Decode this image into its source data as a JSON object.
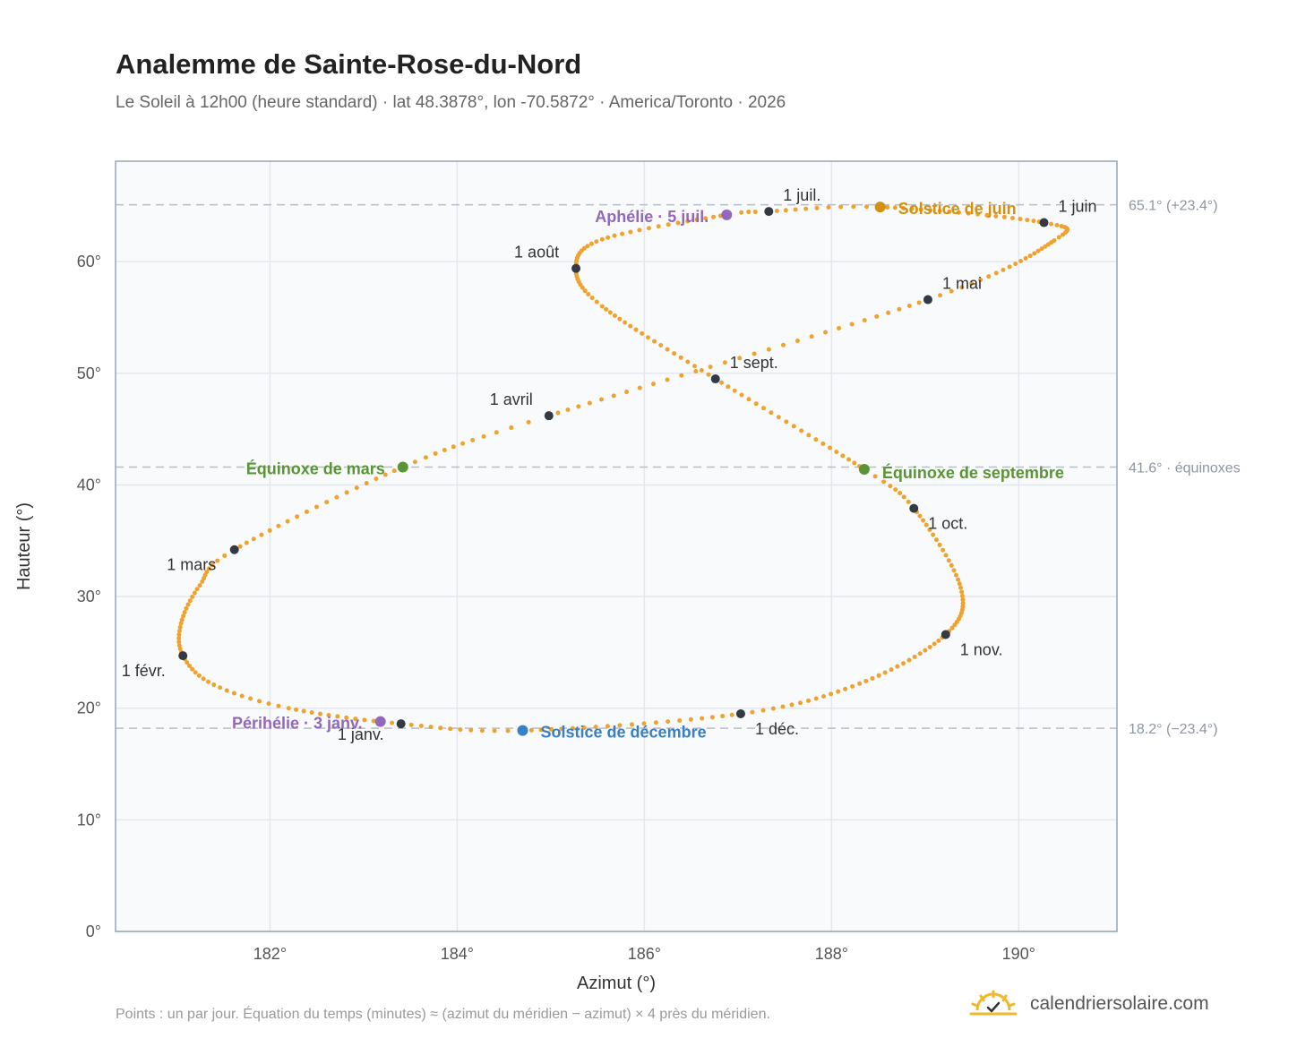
{
  "header": {
    "title": "Analemme de Sainte-Rose-du-Nord",
    "subtitle": "Le Soleil à 12h00 (heure standard) · lat 48.3878°, lon -70.5872° · America/Toronto · 2026"
  },
  "footer": {
    "note": "Points : un par jour. Équation du temps (minutes) ≈ (azimut du méridien − azimut) × 4 près du méridien.",
    "brand": "calendriersolaire.com",
    "brand_icon": "sun-logo-icon"
  },
  "colors": {
    "curve": "#f0a22e",
    "month": "#333a44",
    "june": "#d4900e",
    "equinox": "#5a9436",
    "december": "#3a7fc4",
    "apsis": "#9268b8",
    "refline": "#b8bec6",
    "plot_bg": "#f8fafc"
  },
  "chart_data": {
    "type": "scatter",
    "title": "Analemme de Sainte-Rose-du-Nord",
    "xlabel": "Azimut (°)",
    "ylabel": "Hauteur (°)",
    "xlim": [
      180.35,
      191.05
    ],
    "ylim": [
      0,
      69
    ],
    "xticks": [
      182,
      184,
      186,
      188,
      190
    ],
    "xtick_labels": [
      "182°",
      "184°",
      "186°",
      "188°",
      "190°"
    ],
    "yticks": [
      0,
      10,
      20,
      30,
      40,
      50,
      60
    ],
    "ytick_labels": [
      "0°",
      "10°",
      "20°",
      "30°",
      "40°",
      "50°",
      "60°"
    ],
    "grid": true,
    "reference_lines": [
      {
        "y": 65.1,
        "label": "65.1° (+23.4°)"
      },
      {
        "y": 41.6,
        "label": "41.6° · équinoxes"
      },
      {
        "y": 18.2,
        "label": "18.2° (−23.4°)"
      }
    ],
    "curve_anchors": [
      {
        "day": 0,
        "az": 183.4,
        "alt": 18.6
      },
      {
        "day": 13,
        "az": 182.2,
        "alt": 20.0
      },
      {
        "day": 22,
        "az": 181.4,
        "alt": 22.1
      },
      {
        "day": 31,
        "az": 181.07,
        "alt": 24.7
      },
      {
        "day": 40,
        "az": 181.05,
        "alt": 27.6
      },
      {
        "day": 50,
        "az": 181.25,
        "alt": 31.0
      },
      {
        "day": 59,
        "az": 181.62,
        "alt": 34.2
      },
      {
        "day": 78,
        "az": 183.42,
        "alt": 41.6
      },
      {
        "day": 90,
        "az": 184.98,
        "alt": 46.2
      },
      {
        "day": 120,
        "az": 189.03,
        "alt": 56.6
      },
      {
        "day": 140,
        "az": 190.38,
        "alt": 61.9
      },
      {
        "day": 151,
        "az": 190.27,
        "alt": 63.5
      },
      {
        "day": 171,
        "az": 188.52,
        "alt": 64.9
      },
      {
        "day": 181,
        "az": 187.33,
        "alt": 64.5
      },
      {
        "day": 185,
        "az": 186.88,
        "alt": 64.2
      },
      {
        "day": 200,
        "az": 185.55,
        "alt": 62.0
      },
      {
        "day": 212,
        "az": 185.27,
        "alt": 59.4
      },
      {
        "day": 224,
        "az": 185.55,
        "alt": 56.0
      },
      {
        "day": 243,
        "az": 186.76,
        "alt": 49.5
      },
      {
        "day": 265,
        "az": 188.35,
        "alt": 41.4
      },
      {
        "day": 273,
        "az": 188.88,
        "alt": 37.9
      },
      {
        "day": 290,
        "az": 189.38,
        "alt": 30.8
      },
      {
        "day": 304,
        "az": 189.22,
        "alt": 26.6
      },
      {
        "day": 320,
        "az": 188.3,
        "alt": 22.2
      },
      {
        "day": 334,
        "az": 187.03,
        "alt": 19.5
      },
      {
        "day": 354,
        "az": 184.7,
        "alt": 18.0
      },
      {
        "day": 365,
        "az": 183.4,
        "alt": 18.6
      }
    ],
    "months": [
      {
        "label": "1 janv.",
        "az": 183.4,
        "alt": 18.6,
        "anchor": "middle",
        "dx": -45,
        "dy": 18
      },
      {
        "label": "1 févr.",
        "az": 181.07,
        "alt": 24.7,
        "anchor": "middle",
        "dx": -44,
        "dy": 23
      },
      {
        "label": "1 mars",
        "az": 181.62,
        "alt": 34.2,
        "anchor": "middle",
        "dx": -48,
        "dy": 23
      },
      {
        "label": "1 avril",
        "az": 184.98,
        "alt": 46.2,
        "anchor": "middle",
        "dx": -42,
        "dy": -12
      },
      {
        "label": "1 mai",
        "az": 189.03,
        "alt": 56.6,
        "anchor": "start",
        "dx": 16,
        "dy": -12
      },
      {
        "label": "1 juin",
        "az": 190.27,
        "alt": 63.5,
        "anchor": "start",
        "dx": 16,
        "dy": -12
      },
      {
        "label": "1 juil.",
        "az": 187.33,
        "alt": 64.5,
        "anchor": "start",
        "dx": 16,
        "dy": -12
      },
      {
        "label": "1 août",
        "az": 185.27,
        "alt": 59.4,
        "anchor": "middle",
        "dx": -44,
        "dy": -12
      },
      {
        "label": "1 sept.",
        "az": 186.76,
        "alt": 49.5,
        "anchor": "start",
        "dx": 16,
        "dy": -12
      },
      {
        "label": "1 oct.",
        "az": 188.88,
        "alt": 37.9,
        "anchor": "start",
        "dx": 16,
        "dy": 23
      },
      {
        "label": "1 nov.",
        "az": 189.22,
        "alt": 26.6,
        "anchor": "start",
        "dx": 16,
        "dy": 23
      },
      {
        "label": "1 déc.",
        "az": 187.03,
        "alt": 19.5,
        "anchor": "start",
        "dx": 16,
        "dy": 23
      }
    ],
    "events": [
      {
        "label": "Solstice de juin",
        "az": 188.52,
        "alt": 64.9,
        "color_key": "june",
        "anchor": "start",
        "dx": 20,
        "dy": 8
      },
      {
        "label": "Aphélie · 5 juil.",
        "az": 186.88,
        "alt": 64.2,
        "color_key": "apsis",
        "anchor": "end",
        "dx": -20,
        "dy": 8
      },
      {
        "label": "Équinoxe de mars",
        "az": 183.42,
        "alt": 41.6,
        "color_key": "equinox",
        "anchor": "end",
        "dx": -20,
        "dy": 8
      },
      {
        "label": "Équinoxe de septembre",
        "az": 188.35,
        "alt": 41.4,
        "color_key": "equinox",
        "anchor": "start",
        "dx": 20,
        "dy": 10
      },
      {
        "label": "Périhélie · 3 janv.",
        "az": 183.18,
        "alt": 18.8,
        "color_key": "apsis",
        "anchor": "end",
        "dx": -20,
        "dy": 8
      },
      {
        "label": "Solstice de décembre",
        "az": 184.7,
        "alt": 18.0,
        "color_key": "december",
        "anchor": "start",
        "dx": 20,
        "dy": 8
      }
    ]
  }
}
